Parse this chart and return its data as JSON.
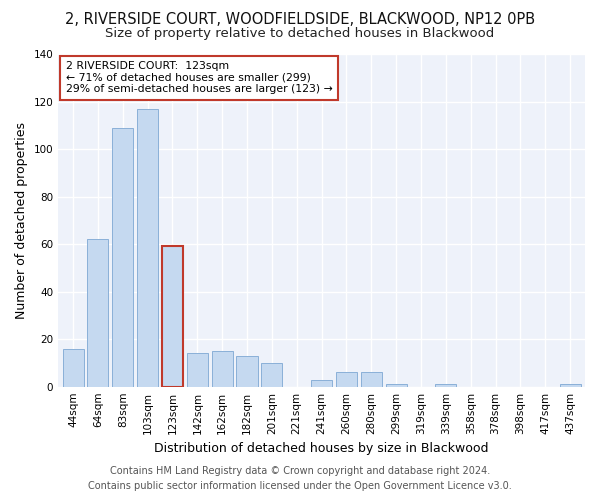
{
  "title": "2, RIVERSIDE COURT, WOODFIELDSIDE, BLACKWOOD, NP12 0PB",
  "subtitle": "Size of property relative to detached houses in Blackwood",
  "xlabel": "Distribution of detached houses by size in Blackwood",
  "ylabel": "Number of detached properties",
  "footer_line1": "Contains HM Land Registry data © Crown copyright and database right 2024.",
  "footer_line2": "Contains public sector information licensed under the Open Government Licence v3.0.",
  "categories": [
    "44sqm",
    "64sqm",
    "83sqm",
    "103sqm",
    "123sqm",
    "142sqm",
    "162sqm",
    "182sqm",
    "201sqm",
    "221sqm",
    "241sqm",
    "260sqm",
    "280sqm",
    "299sqm",
    "319sqm",
    "339sqm",
    "358sqm",
    "378sqm",
    "398sqm",
    "417sqm",
    "437sqm"
  ],
  "values": [
    16,
    62,
    109,
    117,
    59,
    14,
    15,
    13,
    10,
    0,
    3,
    6,
    6,
    1,
    0,
    1,
    0,
    0,
    0,
    0,
    1
  ],
  "highlight_index": 4,
  "bar_color": "#c5d9f0",
  "bar_edge_color": "#8ab0d8",
  "highlight_bar_edge_color": "#c0392b",
  "annotation_box_text_line1": "2 RIVERSIDE COURT:  123sqm",
  "annotation_box_text_line2": "← 71% of detached houses are smaller (299)",
  "annotation_box_text_line3": "29% of semi-detached houses are larger (123) →",
  "annotation_box_edge_color": "#c0392b",
  "annotation_box_face_color": "#ffffff",
  "ylim": [
    0,
    140
  ],
  "yticks": [
    0,
    20,
    40,
    60,
    80,
    100,
    120,
    140
  ],
  "fig_background_color": "#ffffff",
  "plot_background_color": "#eef2fa",
  "grid_color": "#ffffff",
  "title_fontsize": 10.5,
  "subtitle_fontsize": 9.5,
  "axis_label_fontsize": 9,
  "tick_fontsize": 7.5,
  "footer_fontsize": 7.0
}
